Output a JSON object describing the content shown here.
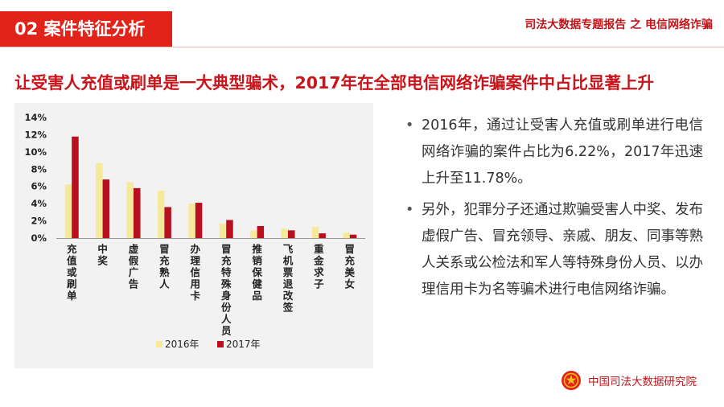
{
  "header": {
    "section_label": "02  案件特征分析",
    "report_title": "司法大数据专题报告 之 电信网络诈骗"
  },
  "headline": "让受害人充值或刷单是一大典型骗术，2017年在全部电信网络诈骗案件中占比显著上升",
  "bullets": [
    "2016年，通过让受害人充值或刷单进行电信网络诈骗的案件占比为6.22%，2017年迅速上升至11.78%。",
    "另外，犯罪分子还通过欺骗受害人中奖、发布虚假广告、冒充领导、亲戚、朋友、同事等熟人关系或公检法和军人等特殊身份人员、以办理信用卡为名等骗术进行电信网络诈骗。"
  ],
  "footer": {
    "org_name": "中国司法大数据研究院",
    "emblem_icon": "national-emblem-icon"
  },
  "colors": {
    "accent": "#e2231a",
    "series_2016": "#f7e99a",
    "series_2017": "#b8101e"
  },
  "chart_data": {
    "type": "bar",
    "categories": [
      "充值或刷单",
      "中奖",
      "虚假广告",
      "冒充熟人",
      "办理信用卡",
      "冒充特殊身份人员",
      "推销保健品",
      "飞机票退改签",
      "重金求子",
      "冒充美女"
    ],
    "series": [
      {
        "name": "2016年",
        "values": [
          6.22,
          8.7,
          6.5,
          5.5,
          4.0,
          1.7,
          0.9,
          1.1,
          1.3,
          0.6
        ]
      },
      {
        "name": "2017年",
        "values": [
          11.78,
          6.8,
          5.8,
          3.6,
          4.1,
          2.1,
          1.4,
          0.9,
          0.55,
          0.4
        ]
      }
    ],
    "yticks": [
      "0%",
      "2%",
      "4%",
      "6%",
      "8%",
      "10%",
      "12%",
      "14%"
    ],
    "ylim": [
      0,
      14
    ],
    "grid": false,
    "legend": "bottom"
  }
}
